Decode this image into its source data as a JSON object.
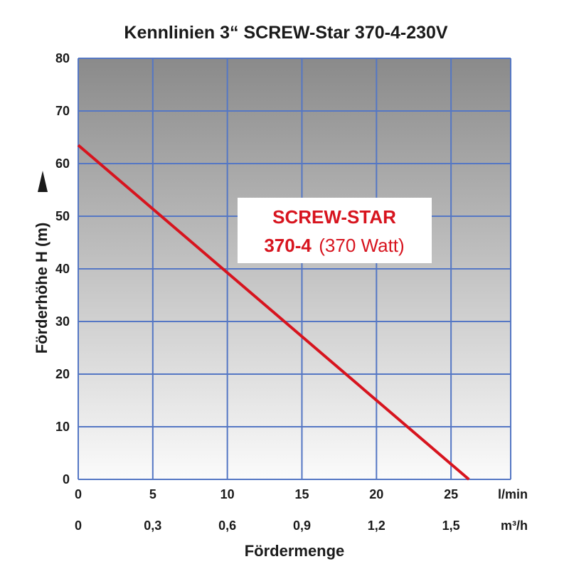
{
  "chart_data": {
    "type": "line",
    "title": "Kennlinien 3“ SCREW-Star 370-4-230V",
    "xlabel": "Fördermenge",
    "ylabel": "Förderhöhe H (m)",
    "x_unit_primary": "l/min",
    "x_unit_secondary": "m³/h",
    "xlim": [
      0,
      29
    ],
    "ylim": [
      0,
      80
    ],
    "x_ticks": [
      0,
      5,
      10,
      15,
      20,
      25
    ],
    "x_tick_labels_primary": [
      "0",
      "5",
      "10",
      "15",
      "20",
      "25"
    ],
    "x_tick_labels_secondary": [
      "0",
      "0,3",
      "0,6",
      "0,9",
      "1,2",
      "1,5"
    ],
    "y_ticks": [
      0,
      10,
      20,
      30,
      40,
      50,
      60,
      70,
      80
    ],
    "y_tick_labels": [
      "0",
      "10",
      "20",
      "30",
      "40",
      "50",
      "60",
      "70",
      "80"
    ],
    "grid": true,
    "background": "vertical gradient, dark grey at top to white at bottom",
    "series": [
      {
        "name": "SCREW-STAR 370-4 (370 Watt)",
        "color": "#d7141e",
        "x": [
          0,
          26.2
        ],
        "y": [
          63.5,
          0
        ]
      }
    ],
    "legend": {
      "line1": "SCREW-STAR",
      "line2_bold": "370-4",
      "line2_normal": "(370 Watt)",
      "placement": "center-right"
    },
    "colors": {
      "grid": "#5577c4",
      "series": "#d7141e",
      "gradient_top": "#8a8a8a",
      "gradient_bottom": "#fbfbfb"
    }
  }
}
